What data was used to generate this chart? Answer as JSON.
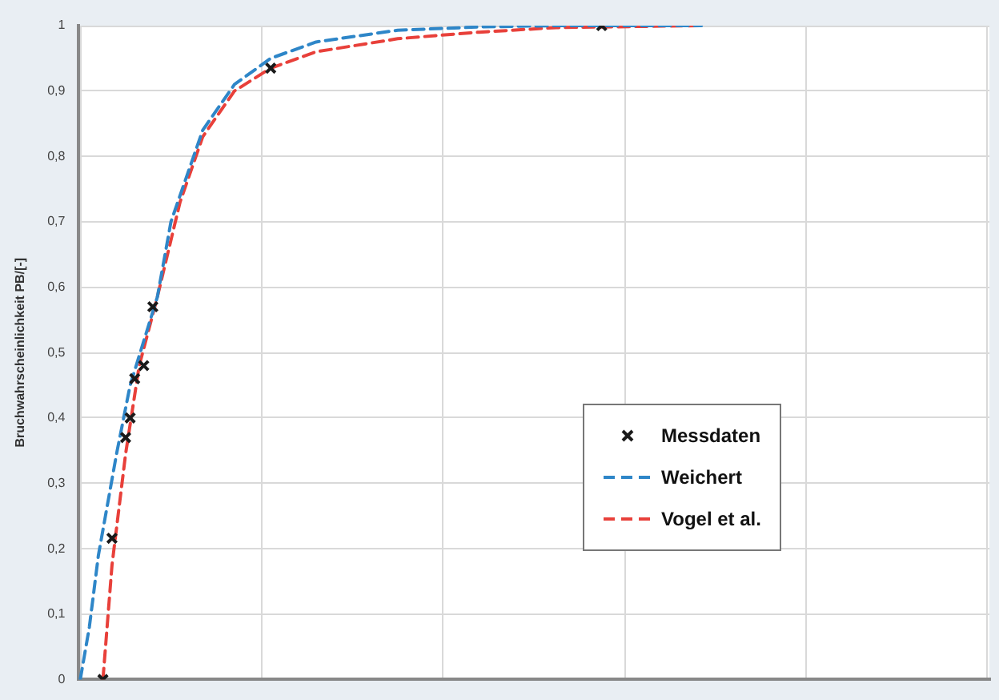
{
  "chart_data": {
    "type": "line",
    "ylabel": "Bruchwahrscheinlichkeit PB/[-]",
    "categories": [
      null,
      null,
      null,
      null,
      null,
      null,
      null,
      null,
      null,
      null,
      null,
      null,
      null,
      null,
      null,
      null,
      null,
      null,
      null,
      null,
      null,
      null,
      null,
      null,
      null,
      null,
      null,
      null,
      null,
      null,
      null,
      null,
      null,
      null,
      null,
      null,
      null,
      null,
      null,
      null,
      null,
      null,
      null,
      null,
      null,
      null,
      null,
      null,
      null,
      null,
      null,
      null,
      null,
      null,
      null,
      null,
      null,
      null,
      null,
      null,
      null,
      null,
      null,
      null,
      null,
      null,
      null,
      null,
      null,
      null,
      null,
      null,
      null,
      null,
      null,
      null,
      null,
      null,
      null,
      null,
      null,
      null,
      null,
      null,
      null,
      null,
      null,
      null,
      null,
      null,
      null,
      null,
      null,
      null,
      null,
      null,
      null,
      null,
      null,
      null,
      null,
      null,
      null,
      null,
      null,
      null,
      null,
      null,
      null,
      null,
      null,
      null,
      null,
      null,
      null,
      null,
      null,
      null,
      null,
      null,
      null,
      null,
      null,
      null,
      null,
      null,
      null,
      null,
      null,
      null,
      null,
      null,
      null,
      null,
      null,
      null,
      null,
      null,
      null,
      null,
      null,
      null,
      null,
      null,
      null,
      null,
      null,
      null,
      null,
      null,
      null,
      null,
      null,
      null,
      null,
      null,
      null,
      null,
      null,
      null,
      null,
      null,
      null,
      null,
      null,
      null,
      null,
      null,
      null,
      null,
      null,
      null,
      null,
      null,
      null,
      null,
      null,
      null,
      null,
      null,
      null,
      null,
      null,
      null,
      null,
      null,
      null,
      null,
      null,
      null,
      null,
      null,
      null,
      null,
      null,
      null,
      null,
      null,
      null,
      null,
      null
    ],
    "ylim": [
      0,
      1
    ],
    "yticks": [
      0,
      {
        "value": 0.1,
        "label": "0,1"
      },
      {
        "value": 0.2,
        "label": "0,2"
      },
      {
        "value": 0.3,
        "label": "0,3"
      },
      {
        "value": 0.4,
        "label": "0,4"
      },
      {
        "value": 0.5,
        "label": "0,5"
      },
      {
        "value": 0.6,
        "label": "0,6"
      },
      {
        "value": 0.7,
        "label": "0,7"
      },
      {
        "value": 0.8,
        "label": "0,8"
      },
      {
        "value": 0.9,
        "label": "0,9"
      },
      1
    ],
    "tick_labels": "y",
    "grid": true,
    "legend": "bottom right",
    "line_style": "dashed",
    "series": [
      {
        "name": "Messdaten",
        "type": "scatter",
        "marker": "cross",
        "color": "#1a1a1a",
        "values": [
          null,
          null,
          null,
          null,
          null,
          0,
          null,
          0.216,
          null,
          null,
          0.37,
          0.4,
          0.46,
          null,
          0.48,
          null,
          0.57,
          null,
          null,
          null,
          null,
          null,
          null,
          null,
          null,
          null,
          null,
          null,
          null,
          null,
          null,
          null,
          null,
          null,
          null,
          null,
          null,
          null,
          null,
          null,
          null,
          null,
          0.935,
          null,
          null,
          null,
          null,
          null,
          null,
          null,
          null,
          null,
          null,
          null,
          null,
          null,
          null,
          null,
          null,
          null,
          null,
          null,
          null,
          null,
          null,
          null,
          null,
          null,
          null,
          null,
          null,
          null,
          null,
          null,
          null,
          null,
          null,
          null,
          null,
          null,
          null,
          null,
          null,
          null,
          null,
          null,
          null,
          null,
          null,
          null,
          null,
          null,
          null,
          null,
          null,
          null,
          null,
          null,
          null,
          null,
          null,
          null,
          null,
          null,
          null,
          null,
          null,
          null,
          null,
          null,
          null,
          null,
          null,
          null,
          null,
          1.0,
          null,
          null,
          null,
          null,
          null,
          null,
          null,
          null,
          null,
          null,
          null,
          null,
          null,
          null,
          null,
          null,
          null,
          null,
          null,
          null,
          null,
          null,
          null,
          null,
          null,
          null,
          null,
          null,
          null,
          null,
          null,
          null,
          null,
          null,
          null,
          null,
          null,
          null,
          null,
          null,
          null,
          null,
          null,
          null,
          null,
          null,
          null,
          null,
          null,
          null,
          null,
          null,
          null,
          null,
          null,
          null,
          null,
          null,
          null,
          null,
          null,
          null,
          null,
          null,
          null,
          null,
          null,
          null,
          null,
          null,
          null,
          null,
          null,
          null,
          null,
          null,
          null,
          null,
          null,
          null,
          null,
          null,
          null,
          null,
          null
        ]
      },
      {
        "name": "Weichert",
        "color": "#2e86c8",
        "values": [
          0,
          null,
          0.08,
          null,
          0.19,
          null,
          null,
          null,
          0.345,
          null,
          null,
          0.45,
          null,
          null,
          null,
          null,
          null,
          0.585,
          null,
          null,
          0.7,
          null,
          null,
          null,
          null,
          null,
          null,
          0.84,
          null,
          null,
          null,
          null,
          null,
          null,
          0.91,
          null,
          null,
          null,
          null,
          null,
          null,
          null,
          0.95,
          null,
          null,
          null,
          null,
          null,
          null,
          null,
          null,
          null,
          0.975,
          null,
          null,
          null,
          null,
          null,
          null,
          null,
          null,
          null,
          null,
          null,
          null,
          null,
          null,
          null,
          null,
          null,
          0.993,
          null,
          null,
          null,
          null,
          null,
          null,
          null,
          null,
          null,
          null,
          null,
          null,
          null,
          null,
          null,
          null,
          null,
          0.998,
          null,
          null,
          null,
          null,
          null,
          null,
          null,
          null,
          null,
          null,
          null,
          null,
          null,
          null,
          null,
          null,
          1.0,
          null,
          null,
          null,
          null,
          null,
          null,
          null,
          null,
          null,
          null,
          null,
          null,
          null,
          null,
          null,
          null,
          null,
          null,
          null,
          null,
          null,
          null,
          null,
          null,
          null,
          null,
          null,
          null,
          null,
          null,
          null,
          1.0,
          null,
          null,
          null,
          null,
          null,
          null,
          null,
          null,
          null,
          null,
          null,
          null,
          null,
          null,
          null,
          null,
          null,
          null,
          null,
          null,
          null,
          null,
          null,
          null,
          null,
          null,
          null,
          null,
          null,
          null,
          null,
          null,
          null,
          null,
          null,
          null,
          null,
          null,
          null,
          null,
          null,
          null,
          null,
          null,
          null,
          null,
          null,
          null,
          null,
          null,
          null,
          null,
          null,
          null,
          null,
          null,
          null,
          null,
          null,
          null,
          null,
          null,
          null
        ]
      },
      {
        "name": "Vogel et al.",
        "color": "#e8403a",
        "values": [
          null,
          null,
          null,
          null,
          null,
          0,
          null,
          0.175,
          null,
          null,
          0.345,
          null,
          null,
          0.48,
          null,
          null,
          null,
          0.585,
          null,
          null,
          null,
          null,
          0.73,
          null,
          null,
          null,
          null,
          0.83,
          null,
          null,
          null,
          null,
          null,
          null,
          0.9,
          null,
          null,
          null,
          null,
          null,
          null,
          null,
          0.935,
          null,
          null,
          null,
          null,
          null,
          null,
          null,
          null,
          null,
          0.96,
          null,
          null,
          null,
          null,
          null,
          null,
          null,
          null,
          null,
          null,
          null,
          null,
          null,
          null,
          null,
          null,
          null,
          0.98,
          null,
          null,
          null,
          null,
          null,
          null,
          null,
          null,
          null,
          null,
          null,
          null,
          null,
          null,
          null,
          null,
          null,
          0.99,
          null,
          null,
          null,
          null,
          null,
          null,
          null,
          null,
          null,
          null,
          null,
          null,
          null,
          null,
          null,
          null,
          0.997,
          null,
          null,
          null,
          null,
          null,
          null,
          null,
          null,
          null,
          null,
          null,
          null,
          null,
          null,
          null,
          null,
          null,
          null,
          null,
          null,
          null,
          null,
          null,
          null,
          null,
          null,
          null,
          null,
          null,
          null,
          null,
          1.0,
          null,
          null,
          null,
          null,
          null,
          null,
          null,
          null,
          null,
          null,
          null,
          null,
          null,
          null,
          null,
          null,
          null,
          null,
          null,
          null,
          null,
          null,
          null,
          null,
          null,
          null,
          null,
          null,
          null,
          null,
          null,
          null,
          null,
          null,
          null,
          null,
          null,
          null,
          null,
          null,
          null,
          null,
          null,
          null,
          null,
          null,
          null,
          null,
          null,
          null,
          null,
          null,
          null,
          null,
          null,
          null,
          null,
          null,
          null,
          null,
          null,
          null,
          null
        ]
      }
    ]
  }
}
